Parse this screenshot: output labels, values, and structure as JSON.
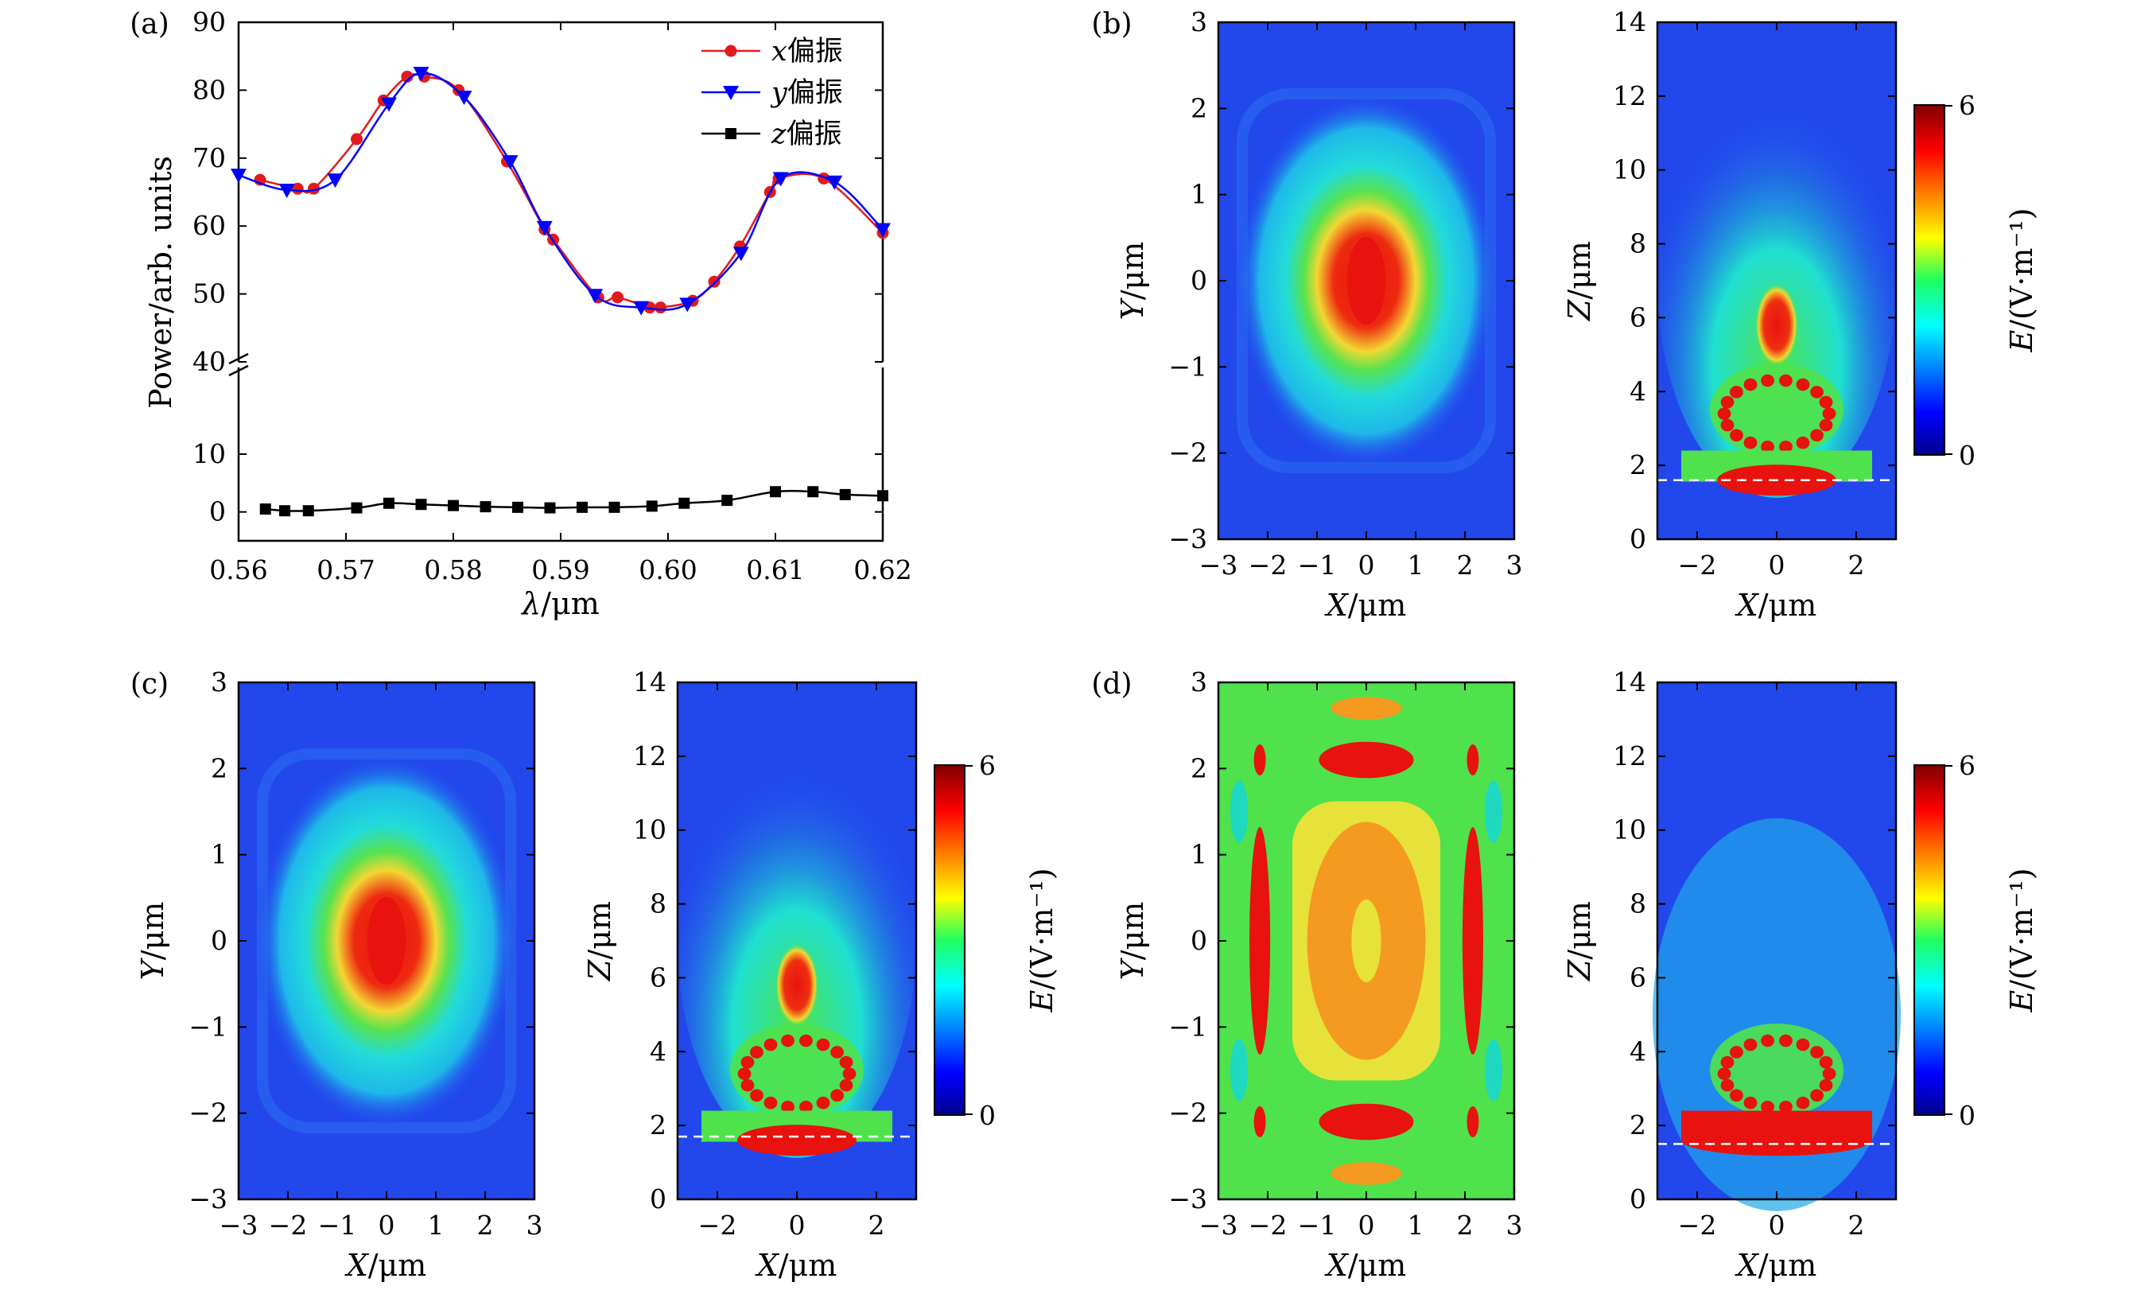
{
  "chart_data": [
    {
      "panel": "(a)",
      "type": "line",
      "xlabel": "λ/μm",
      "ylabel": "Power/arb. units",
      "xlim": [
        0.56,
        0.62
      ],
      "x_ticks": [
        "0.56",
        "0.57",
        "0.58",
        "0.59",
        "0.60",
        "0.61",
        "0.62"
      ],
      "y_ticks_upper": [
        "40",
        "50",
        "60",
        "70",
        "80",
        "90"
      ],
      "y_ticks_lower": [
        "0",
        "10"
      ],
      "broken_y_axis": true,
      "ylim_upper": [
        40,
        90
      ],
      "ylim_lower": [
        -5,
        25
      ],
      "legend_position": "top-right",
      "series": [
        {
          "name": "x偏振",
          "label_var": "x",
          "label_text": "偏振",
          "color": "#e31a1c",
          "marker": "circle",
          "x": [
            0.562,
            0.5655,
            0.567,
            0.571,
            0.5735,
            0.5757,
            0.5773,
            0.5805,
            0.585,
            0.5885,
            0.5893,
            0.5935,
            0.5953,
            0.5983,
            0.5993,
            0.6023,
            0.6043,
            0.6067,
            0.6095,
            0.6103,
            0.6145,
            0.62
          ],
          "y": [
            66.8,
            65.5,
            65.5,
            72.8,
            78.5,
            82.0,
            82.0,
            80.0,
            69.5,
            59.5,
            58.0,
            49.5,
            49.5,
            48.0,
            48.0,
            49.0,
            51.8,
            57.0,
            65.0,
            67.0,
            67.0,
            59.0
          ]
        },
        {
          "name": "y偏振",
          "label_var": "y",
          "label_text": "偏振",
          "color": "#0000ff",
          "marker": "triangle-down",
          "x": [
            0.56,
            0.5645,
            0.569,
            0.574,
            0.577,
            0.581,
            0.5853,
            0.5885,
            0.5932,
            0.5975,
            0.6018,
            0.6068,
            0.6105,
            0.6155,
            0.62
          ],
          "y": [
            67.5,
            65.3,
            66.8,
            78.0,
            82.5,
            79.0,
            69.5,
            59.8,
            49.8,
            48.0,
            48.5,
            56.0,
            67.0,
            66.5,
            59.5
          ]
        },
        {
          "name": "z偏振",
          "label_var": "z",
          "label_text": "偏振",
          "color": "#000000",
          "marker": "square",
          "x": [
            0.5625,
            0.5643,
            0.5665,
            0.571,
            0.574,
            0.577,
            0.58,
            0.583,
            0.586,
            0.589,
            0.592,
            0.595,
            0.5985,
            0.6015,
            0.6055,
            0.61,
            0.6135,
            0.6165,
            0.62
          ],
          "y": [
            0.5,
            0.2,
            0.2,
            0.7,
            1.5,
            1.3,
            1.1,
            0.9,
            0.8,
            0.7,
            0.8,
            0.8,
            1.0,
            1.5,
            2.0,
            3.5,
            3.5,
            3.0,
            2.8
          ]
        }
      ]
    },
    {
      "panel": "(b)",
      "type": "heatmap",
      "subplots": [
        {
          "xlabel": "X/μm",
          "ylabel": "Y/μm",
          "xlim": [
            -3,
            3
          ],
          "ylim": [
            -3,
            3
          ],
          "x_ticks": [
            "−3",
            "−2",
            "−1",
            "0",
            "1",
            "2",
            "3"
          ],
          "y_ticks": [
            "−3",
            "−2",
            "−1",
            "0",
            "1",
            "2",
            "3"
          ],
          "pattern": "central-spot"
        },
        {
          "xlabel": "X/μm",
          "ylabel": "Z/μm",
          "xlim": [
            -3,
            3
          ],
          "ylim": [
            0,
            14
          ],
          "x_ticks": [
            "−2",
            "0",
            "2"
          ],
          "y_ticks": [
            "0",
            "2",
            "4",
            "6",
            "8",
            "10",
            "12",
            "14"
          ],
          "pattern": "sphere-focus",
          "dashed_line_z": 1.6
        }
      ],
      "colorbar": {
        "label": "E/(V·m⁻¹)",
        "min_label": "0",
        "max_label": "6",
        "range": [
          0,
          6
        ],
        "colormap": "jet"
      }
    },
    {
      "panel": "(c)",
      "type": "heatmap",
      "subplots": [
        {
          "xlabel": "X/μm",
          "ylabel": "Y/μm",
          "xlim": [
            -3,
            3
          ],
          "ylim": [
            -3,
            3
          ],
          "x_ticks": [
            "−3",
            "−2",
            "−1",
            "0",
            "1",
            "2",
            "3"
          ],
          "y_ticks": [
            "−3",
            "−2",
            "−1",
            "0",
            "1",
            "2",
            "3"
          ],
          "pattern": "central-spot"
        },
        {
          "xlabel": "X/μm",
          "ylabel": "Z/μm",
          "xlim": [
            -3,
            3
          ],
          "ylim": [
            0,
            14
          ],
          "x_ticks": [
            "−2",
            "0",
            "2"
          ],
          "y_ticks": [
            "0",
            "2",
            "4",
            "6",
            "8",
            "10",
            "12",
            "14"
          ],
          "pattern": "sphere-focus",
          "dashed_line_z": 1.7
        }
      ],
      "colorbar": {
        "label": "E/(V·m⁻¹)",
        "min_label": "0",
        "max_label": "6",
        "range": [
          0,
          6
        ],
        "colormap": "jet"
      }
    },
    {
      "panel": "(d)",
      "type": "heatmap",
      "subplots": [
        {
          "xlabel": "X/μm",
          "ylabel": "Y/μm",
          "xlim": [
            -3,
            3
          ],
          "ylim": [
            -3,
            3
          ],
          "x_ticks": [
            "−3",
            "−2",
            "−1",
            "0",
            "1",
            "2",
            "3"
          ],
          "y_ticks": [
            "−3",
            "−2",
            "−1",
            "0",
            "1",
            "2",
            "3"
          ],
          "pattern": "lattice"
        },
        {
          "xlabel": "X/μm",
          "ylabel": "Z/μm",
          "xlim": [
            -3,
            3
          ],
          "ylim": [
            0,
            14
          ],
          "x_ticks": [
            "−2",
            "0",
            "2"
          ],
          "y_ticks": [
            "0",
            "2",
            "4",
            "6",
            "8",
            "10",
            "12",
            "14"
          ],
          "pattern": "sphere-bright-base",
          "dashed_line_z": 1.5
        }
      ],
      "colorbar": {
        "label": "E/(V·m⁻¹)",
        "min_label": "0",
        "max_label": "6",
        "range": [
          0,
          6
        ],
        "colormap": "jet"
      }
    }
  ],
  "colors": {
    "map_background": "#2248ec",
    "map_cyan": "#1fe0e8",
    "map_green": "#4fe24c",
    "map_yellow": "#e6e23a",
    "map_orange": "#f59a20",
    "map_red": "#e8120e"
  }
}
